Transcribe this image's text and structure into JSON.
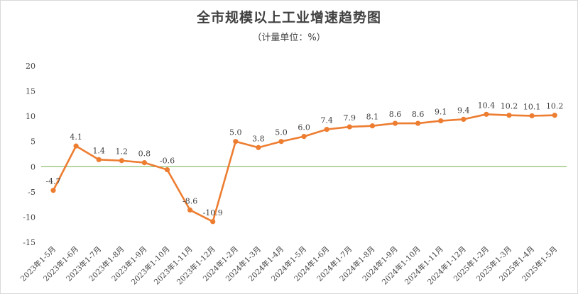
{
  "chart_data": {
    "type": "line",
    "title": "全市规模以上工业增速趋势图",
    "subtitle": "（计量单位：%）",
    "categories": [
      "2023年1-5月",
      "2023年1-6月",
      "2023年1-7月",
      "2023年1-8月",
      "2023年1-9月",
      "2023年1-10月",
      "2023年1-11月",
      "2023年1-12月",
      "2024年1-2月",
      "2024年1-3月",
      "2024年1-4月",
      "2024年1-5月",
      "2024年1-6月",
      "2024年1-7月",
      "2024年1-8月",
      "2024年1-9月",
      "2024年1-10月",
      "2024年1-11月",
      "2024年1-12月",
      "2025年1-2月",
      "2025年1-3月",
      "2025年1-4月",
      "2025年1-5月"
    ],
    "values": [
      -4.7,
      4.1,
      1.4,
      1.2,
      0.8,
      -0.6,
      -8.6,
      -10.9,
      5.0,
      3.8,
      5.0,
      6.0,
      7.4,
      7.9,
      8.1,
      8.6,
      8.6,
      9.1,
      9.4,
      10.4,
      10.2,
      10.1,
      10.2
    ],
    "value_labels": [
      "-4.7",
      "4.1",
      "1.4",
      "1.2",
      "0.8",
      "-0.6",
      "-8.6",
      "-10.9",
      "5.0",
      "3.8",
      "5.0",
      "6.0",
      "7.4",
      "7.9",
      "8.1",
      "8.6",
      "8.6",
      "9.1",
      "9.4",
      "10.4",
      "10.2",
      "10.1",
      "10.2"
    ],
    "yticks": [
      "20",
      "15",
      "10",
      "5",
      "0",
      "-5",
      "-10",
      "-15"
    ],
    "ylim": [
      -15,
      20
    ],
    "ytick_values": [
      20,
      15,
      10,
      5,
      0,
      -5,
      -10,
      -15
    ],
    "grid": false,
    "zero_line": true,
    "colors": {
      "line": "#ed7d31",
      "zero_line": "#70ad47",
      "text": "#404040"
    }
  }
}
